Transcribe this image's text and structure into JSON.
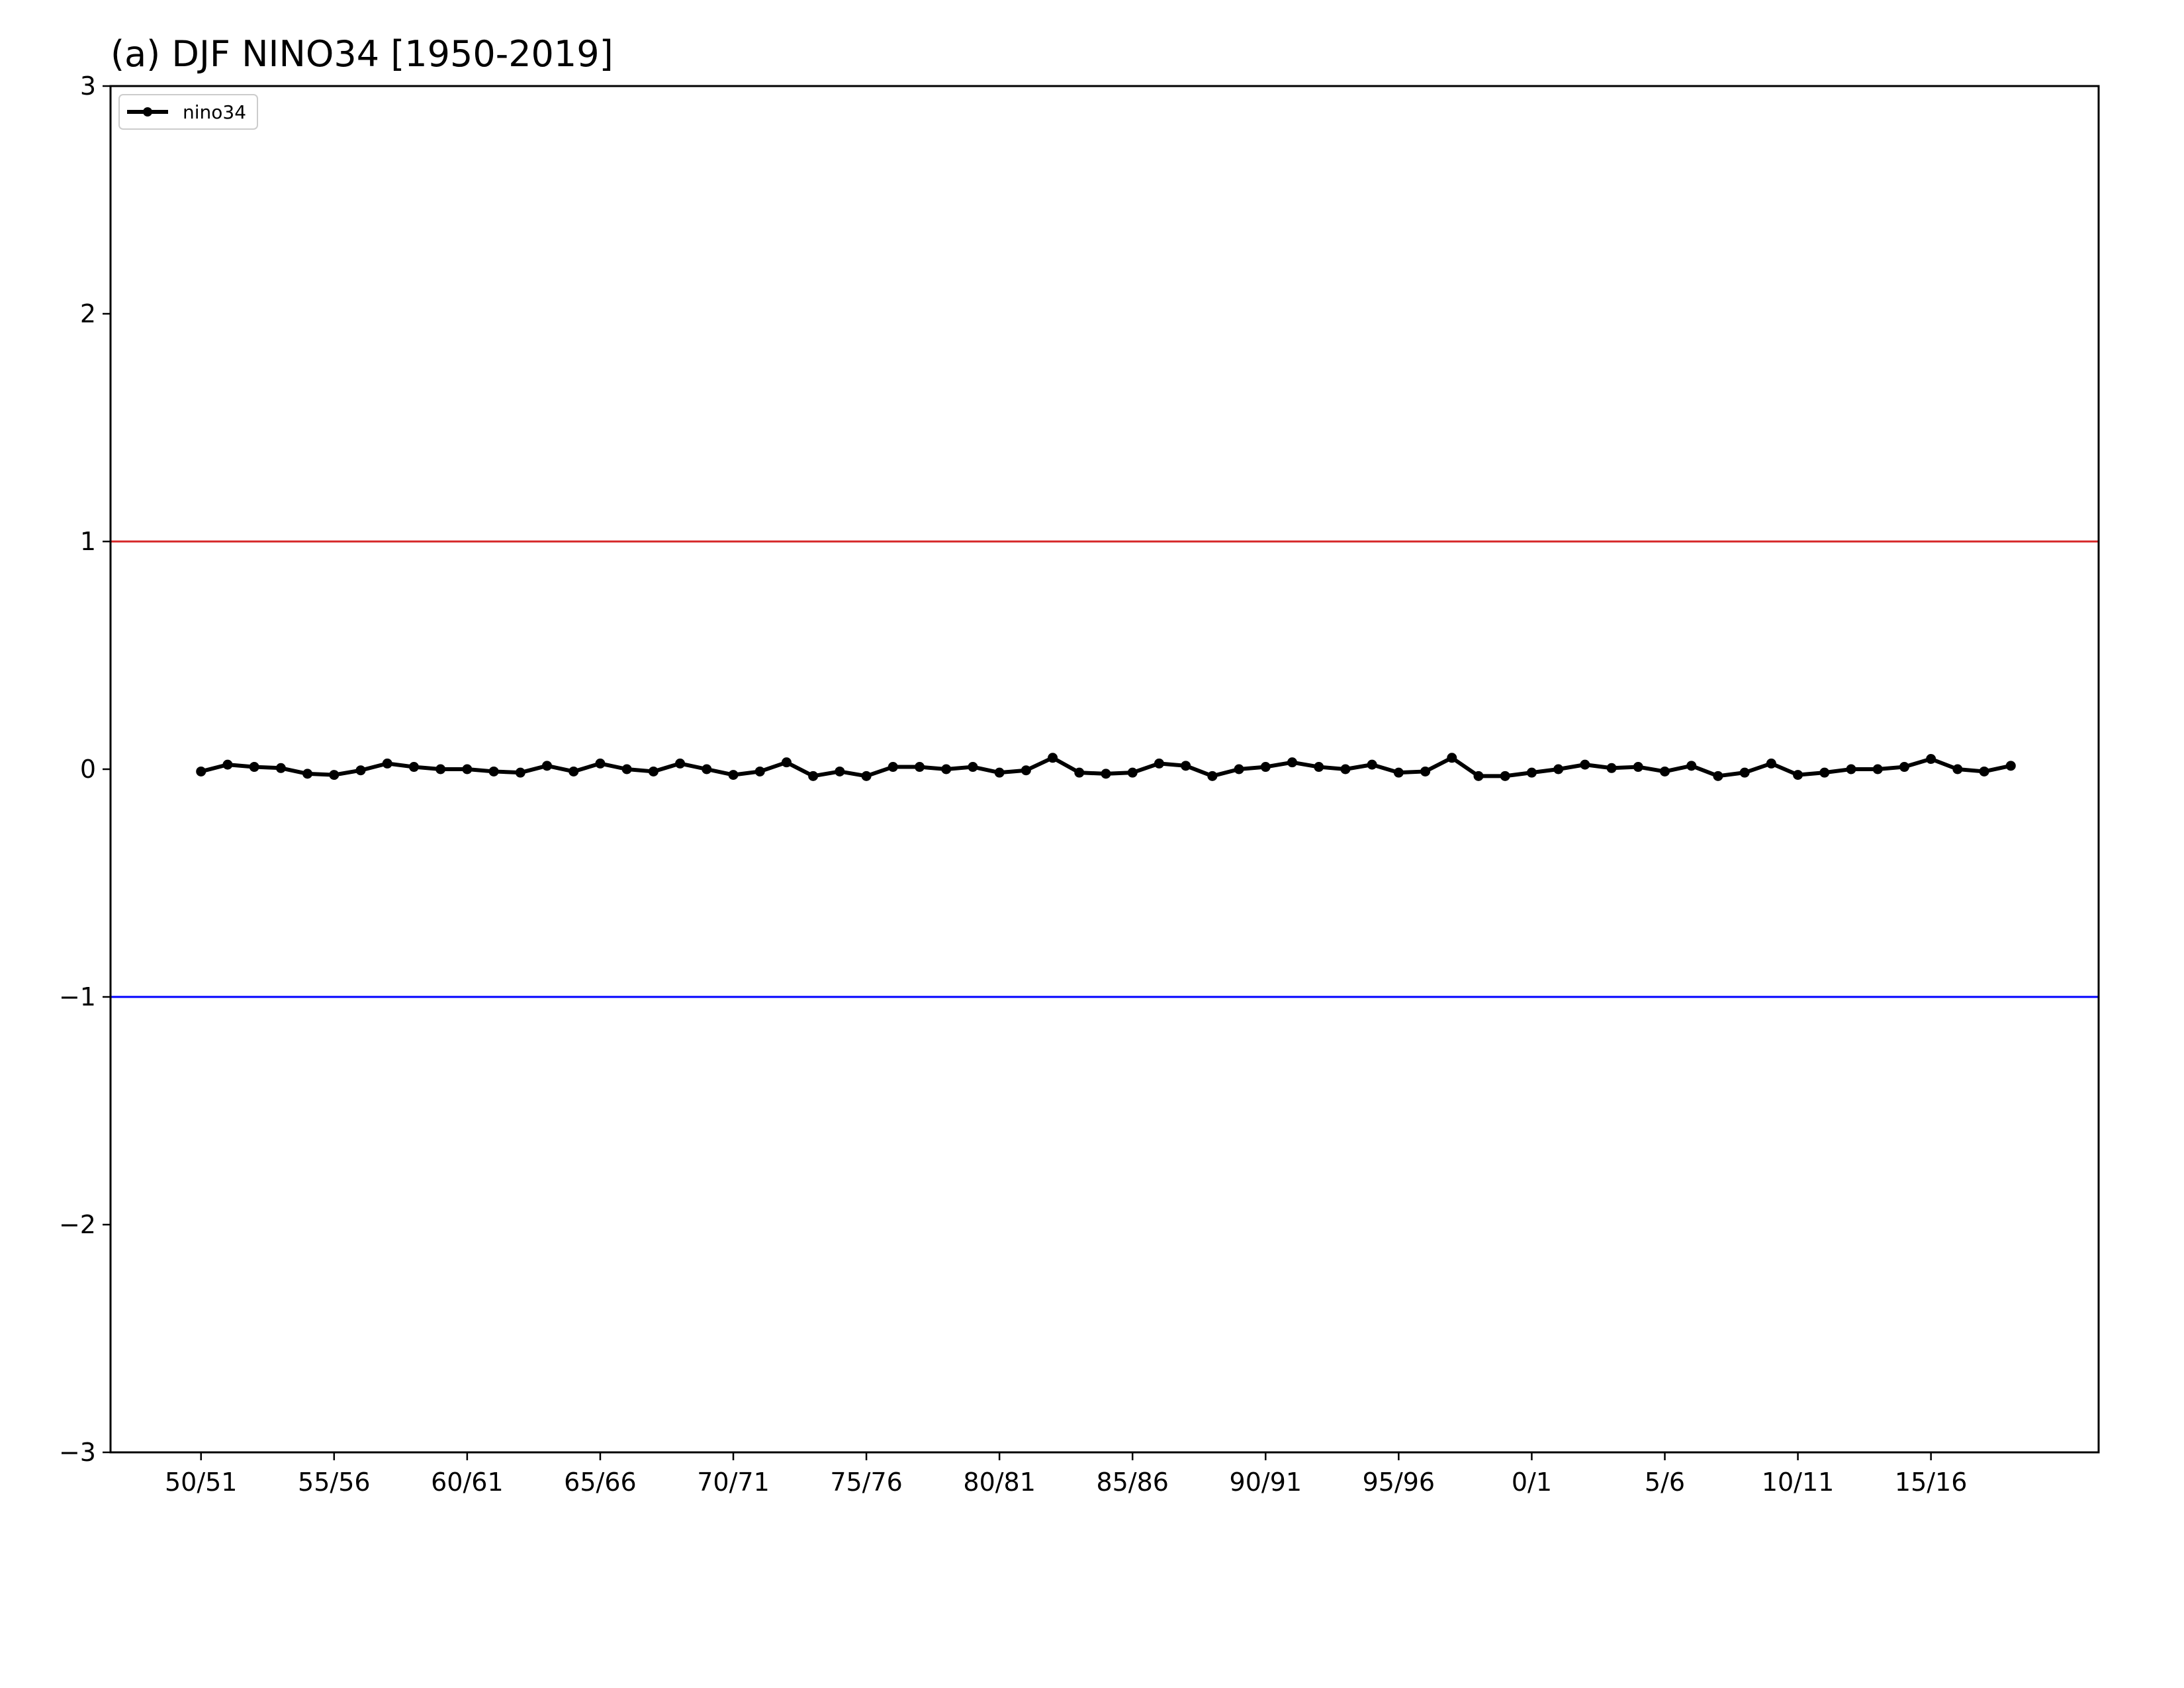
{
  "chart_data": {
    "type": "line",
    "title": "(a) DJF NINO34 [1950-2019]",
    "xlabel": "",
    "ylabel": "",
    "ylim": [
      -3,
      3
    ],
    "yticks": [
      3,
      2,
      1,
      0,
      -1,
      -2,
      -3
    ],
    "ytick_labels": [
      "3",
      "2",
      "1",
      "0",
      "−1",
      "−2",
      "−3"
    ],
    "xlim": [
      1946.6,
      2021.3
    ],
    "xticks": [
      {
        "value": 1950,
        "label": "50/51"
      },
      {
        "value": 1955,
        "label": "55/56"
      },
      {
        "value": 1960,
        "label": "60/61"
      },
      {
        "value": 1965,
        "label": "65/66"
      },
      {
        "value": 1970,
        "label": "70/71"
      },
      {
        "value": 1975,
        "label": "75/76"
      },
      {
        "value": 1980,
        "label": "80/81"
      },
      {
        "value": 1985,
        "label": "85/86"
      },
      {
        "value": 1990,
        "label": "90/91"
      },
      {
        "value": 1995,
        "label": "95/96"
      },
      {
        "value": 2000,
        "label": "0/1"
      },
      {
        "value": 2005,
        "label": "5/6"
      },
      {
        "value": 2010,
        "label": "10/11"
      },
      {
        "value": 2015,
        "label": "15/16"
      }
    ],
    "grid": false,
    "legend": {
      "position": "top-left"
    },
    "hlines": [
      {
        "y": 1,
        "color": "#d62728"
      },
      {
        "y": -1,
        "color": "#0000ff"
      }
    ],
    "series": [
      {
        "name": "nino34",
        "color": "#000000",
        "x": [
          1950,
          1951,
          1952,
          1953,
          1954,
          1955,
          1956,
          1957,
          1958,
          1959,
          1960,
          1961,
          1962,
          1963,
          1964,
          1965,
          1966,
          1967,
          1968,
          1969,
          1970,
          1971,
          1972,
          1973,
          1974,
          1975,
          1976,
          1977,
          1978,
          1979,
          1980,
          1981,
          1982,
          1983,
          1984,
          1985,
          1986,
          1987,
          1988,
          1989,
          1990,
          1991,
          1992,
          1993,
          1994,
          1995,
          1996,
          1997,
          1998,
          1999,
          2000,
          2001,
          2002,
          2003,
          2004,
          2005,
          2006,
          2007,
          2008,
          2009,
          2010,
          2011,
          2012,
          2013,
          2014,
          2015,
          2016,
          2017,
          2018
        ],
        "values": [
          -0.01,
          0.02,
          0.01,
          0.005,
          -0.02,
          -0.025,
          -0.005,
          0.025,
          0.01,
          0.0,
          0.0,
          -0.01,
          -0.015,
          0.015,
          -0.01,
          0.025,
          0.0,
          -0.01,
          0.025,
          0.0,
          -0.025,
          -0.01,
          0.03,
          -0.03,
          -0.01,
          -0.03,
          0.01,
          0.01,
          0.0,
          0.01,
          -0.015,
          -0.005,
          0.05,
          -0.015,
          -0.02,
          -0.015,
          0.025,
          0.015,
          -0.03,
          0.0,
          0.01,
          0.03,
          0.01,
          0.0,
          0.02,
          -0.015,
          -0.01,
          0.05,
          -0.03,
          -0.03,
          -0.015,
          0.0,
          0.02,
          0.005,
          0.01,
          -0.01,
          0.015,
          -0.03,
          -0.015,
          0.025,
          -0.025,
          -0.015,
          0.0,
          0.0,
          0.01,
          0.045,
          0.0,
          -0.01,
          0.015
        ]
      }
    ]
  }
}
